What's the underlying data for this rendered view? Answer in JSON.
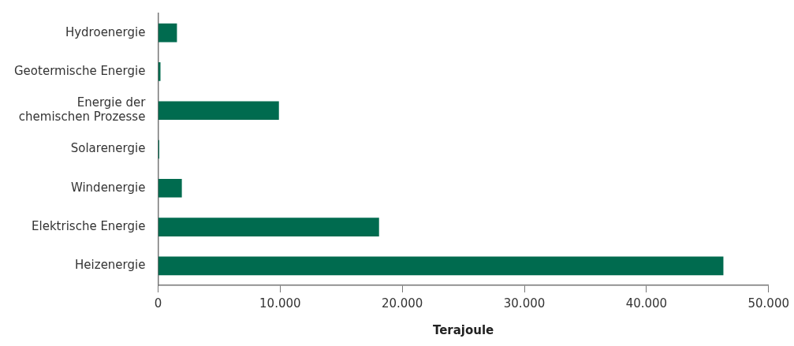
{
  "chart_data": {
    "type": "bar",
    "orientation": "horizontal",
    "xlabel": "Terajoule",
    "categories": [
      "Hydroenergie",
      "Geotermische Energie",
      "Energie der chemischen Prozesse",
      "Solarenergie",
      "Windenergie",
      "Elektrische Energie",
      "Heizenergie"
    ],
    "values": [
      1550,
      200,
      9900,
      100,
      1950,
      18100,
      46300
    ],
    "color": "#006b4f",
    "xlim": [
      0,
      50000
    ],
    "xticks": [
      0,
      {
        "value": 10000,
        "label": "10.000"
      },
      {
        "value": 20000,
        "label": "20.000"
      },
      {
        "value": 30000,
        "label": "30.000"
      },
      {
        "value": 40000,
        "label": "40.000"
      },
      {
        "value": 50000,
        "label": "50.000"
      }
    ],
    "grid": false,
    "legend": false
  }
}
